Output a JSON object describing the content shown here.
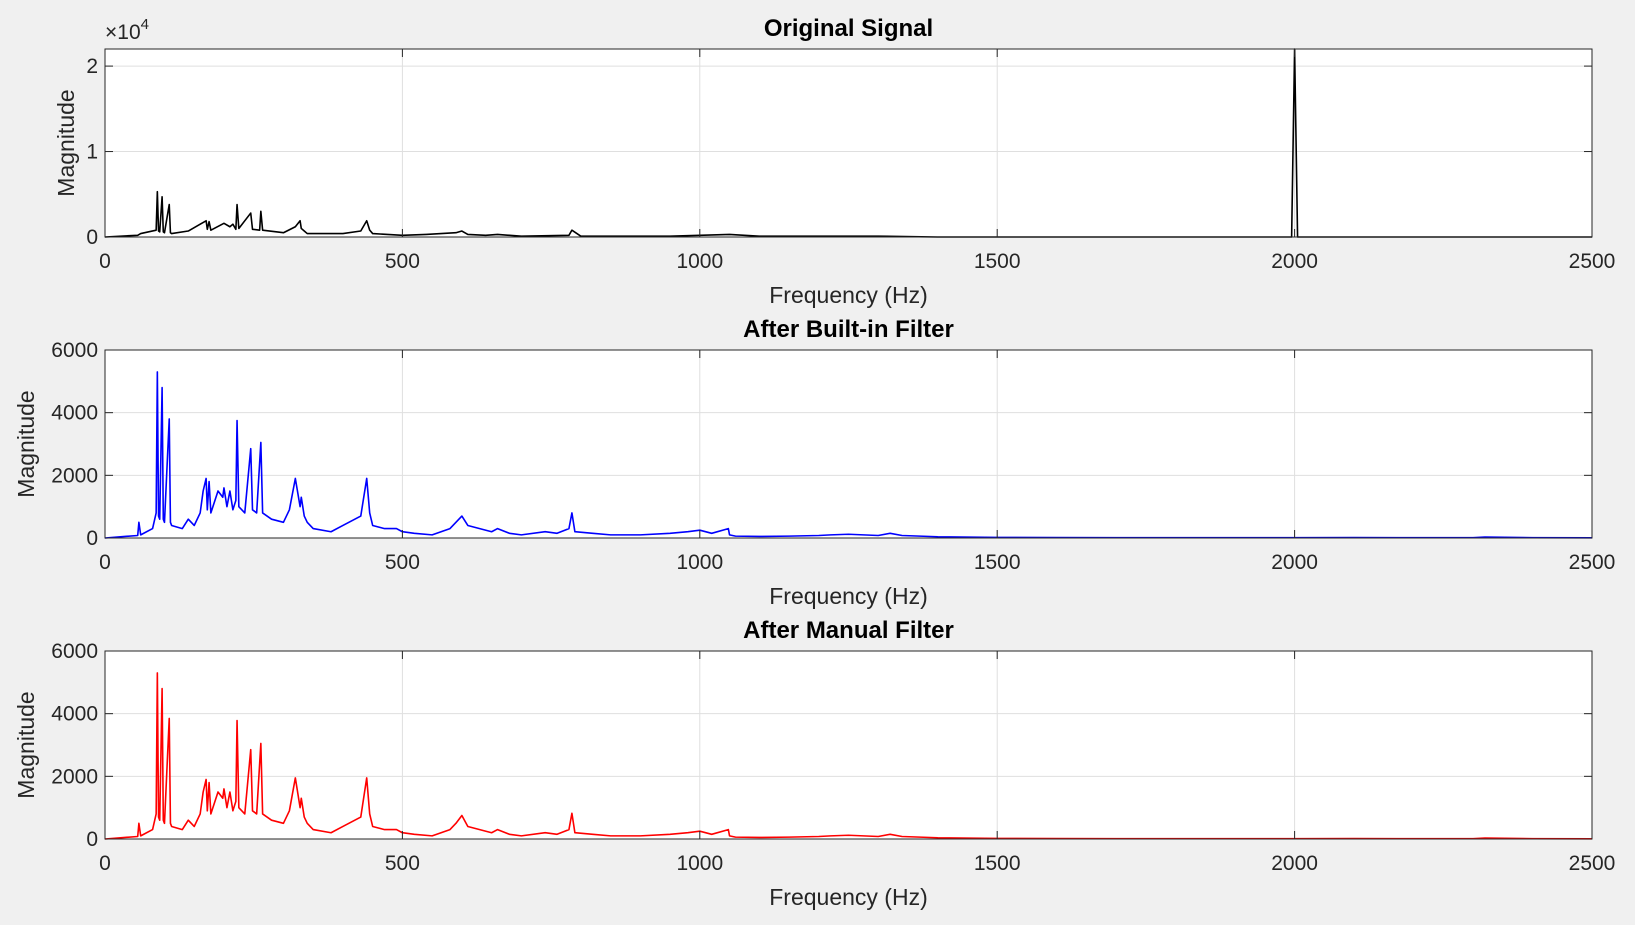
{
  "figure": {
    "background": "#f0f0f0"
  },
  "chart_data": [
    {
      "type": "line",
      "title": "Original Signal",
      "xlabel": "Frequency (Hz)",
      "ylabel": "Magnitude",
      "xlim": [
        0,
        2500
      ],
      "ylim": [
        0,
        2.2
      ],
      "y_multiplier": "×10",
      "y_exponent": "4",
      "xticks": [
        0,
        500,
        1000,
        1500,
        2000,
        2500
      ],
      "yticks": [
        0,
        1,
        2
      ],
      "grid": true,
      "color": "#000000",
      "series": [
        {
          "x": [
            0,
            55,
            60,
            86,
            88,
            90,
            92,
            96,
            98,
            100,
            108,
            110,
            112,
            140,
            160,
            170,
            172,
            175,
            178,
            200,
            210,
            215,
            220,
            222,
            225,
            245,
            248,
            260,
            262,
            265,
            300,
            320,
            328,
            330,
            335,
            340,
            400,
            430,
            440,
            445,
            450,
            500,
            540,
            590,
            600,
            610,
            640,
            660,
            700,
            780,
            785,
            800,
            900,
            950,
            1000,
            1050,
            1100,
            1200,
            1300,
            1400,
            1500,
            1600,
            1700,
            1800,
            1900,
            1995,
            2000,
            2005,
            2100,
            2200,
            2300,
            2400,
            2500
          ],
          "y": [
            0.0,
            0.02,
            0.04,
            0.08,
            0.53,
            0.07,
            0.06,
            0.47,
            0.06,
            0.05,
            0.38,
            0.05,
            0.04,
            0.07,
            0.15,
            0.19,
            0.09,
            0.18,
            0.08,
            0.16,
            0.12,
            0.15,
            0.09,
            0.38,
            0.1,
            0.28,
            0.09,
            0.08,
            0.3,
            0.08,
            0.05,
            0.12,
            0.19,
            0.1,
            0.07,
            0.04,
            0.04,
            0.07,
            0.19,
            0.08,
            0.04,
            0.02,
            0.03,
            0.05,
            0.07,
            0.03,
            0.02,
            0.03,
            0.01,
            0.02,
            0.08,
            0.01,
            0.01,
            0.01,
            0.02,
            0.03,
            0.01,
            0.01,
            0.01,
            0.0,
            0.0,
            0.0,
            0.0,
            0.0,
            0.0,
            0.0,
            2.2,
            0.0,
            0.0,
            0.0,
            0.0,
            0.0,
            0.0
          ]
        }
      ]
    },
    {
      "type": "line",
      "title": "After Built-in Filter",
      "xlabel": "Frequency (Hz)",
      "ylabel": "Magnitude",
      "xlim": [
        0,
        2500
      ],
      "ylim": [
        0,
        6000
      ],
      "xticks": [
        0,
        500,
        1000,
        1500,
        2000,
        2500
      ],
      "yticks": [
        0,
        2000,
        4000,
        6000
      ],
      "grid": true,
      "color": "#0000ff",
      "series": [
        {
          "x": [
            0,
            55,
            57,
            60,
            80,
            86,
            88,
            90,
            92,
            96,
            98,
            100,
            108,
            110,
            112,
            130,
            140,
            150,
            160,
            165,
            170,
            172,
            175,
            178,
            190,
            198,
            200,
            205,
            210,
            215,
            220,
            222,
            225,
            235,
            245,
            248,
            255,
            262,
            265,
            280,
            300,
            310,
            320,
            328,
            330,
            335,
            340,
            350,
            380,
            400,
            410,
            430,
            440,
            445,
            450,
            470,
            490,
            500,
            520,
            550,
            580,
            590,
            600,
            610,
            630,
            650,
            660,
            680,
            700,
            740,
            760,
            780,
            785,
            790,
            820,
            850,
            900,
            950,
            980,
            1000,
            1020,
            1048,
            1050,
            1060,
            1100,
            1150,
            1200,
            1220,
            1250,
            1300,
            1320,
            1340,
            1400,
            1500,
            1600,
            1700,
            1800,
            1900,
            2000,
            2100,
            2200,
            2300,
            2320,
            2400,
            2500
          ],
          "y": [
            0,
            80,
            500,
            100,
            300,
            800,
            5300,
            700,
            600,
            4800,
            600,
            500,
            3800,
            500,
            400,
            300,
            600,
            400,
            800,
            1500,
            1900,
            900,
            1800,
            800,
            1500,
            1300,
            1600,
            1000,
            1500,
            900,
            1200,
            3750,
            1000,
            800,
            2850,
            900,
            800,
            3050,
            800,
            600,
            500,
            900,
            1900,
            1000,
            1300,
            700,
            500,
            300,
            200,
            400,
            500,
            700,
            1900,
            800,
            400,
            300,
            300,
            200,
            150,
            100,
            300,
            500,
            700,
            400,
            300,
            200,
            300,
            150,
            100,
            200,
            150,
            300,
            800,
            200,
            150,
            100,
            100,
            150,
            200,
            250,
            150,
            300,
            100,
            60,
            50,
            60,
            80,
            100,
            120,
            80,
            150,
            80,
            40,
            20,
            15,
            10,
            10,
            10,
            10,
            15,
            10,
            10,
            30,
            10,
            5
          ]
        }
      ]
    },
    {
      "type": "line",
      "title": "After Manual Filter",
      "xlabel": "Frequency (Hz)",
      "ylabel": "Magnitude",
      "xlim": [
        0,
        2500
      ],
      "ylim": [
        0,
        6000
      ],
      "xticks": [
        0,
        500,
        1000,
        1500,
        2000,
        2500
      ],
      "yticks": [
        0,
        2000,
        4000,
        6000
      ],
      "grid": true,
      "color": "#ff0000",
      "series": [
        {
          "x": [
            0,
            55,
            57,
            60,
            80,
            86,
            88,
            90,
            92,
            96,
            98,
            100,
            108,
            110,
            112,
            130,
            140,
            150,
            160,
            165,
            170,
            172,
            175,
            178,
            190,
            198,
            200,
            205,
            210,
            215,
            220,
            222,
            225,
            235,
            245,
            248,
            255,
            262,
            265,
            280,
            300,
            310,
            320,
            328,
            330,
            335,
            340,
            350,
            380,
            400,
            410,
            430,
            440,
            445,
            450,
            470,
            490,
            500,
            520,
            550,
            580,
            590,
            600,
            610,
            630,
            650,
            660,
            680,
            700,
            740,
            760,
            780,
            785,
            790,
            820,
            850,
            900,
            950,
            980,
            1000,
            1020,
            1048,
            1050,
            1060,
            1100,
            1150,
            1200,
            1220,
            1250,
            1300,
            1320,
            1340,
            1400,
            1500,
            1600,
            1700,
            1800,
            1900,
            2000,
            2100,
            2200,
            2300,
            2320,
            2400,
            2500
          ],
          "y": [
            0,
            80,
            500,
            100,
            300,
            800,
            5300,
            700,
            600,
            4800,
            600,
            500,
            3850,
            500,
            400,
            300,
            600,
            400,
            800,
            1500,
            1900,
            900,
            1800,
            800,
            1500,
            1300,
            1600,
            1000,
            1500,
            900,
            1200,
            3780,
            1000,
            800,
            2850,
            900,
            800,
            3050,
            800,
            600,
            500,
            900,
            1950,
            1000,
            1300,
            700,
            500,
            300,
            200,
            400,
            500,
            700,
            1950,
            800,
            400,
            300,
            300,
            200,
            150,
            100,
            300,
            500,
            750,
            400,
            300,
            200,
            300,
            150,
            100,
            200,
            150,
            300,
            820,
            200,
            150,
            100,
            100,
            150,
            200,
            250,
            150,
            300,
            100,
            60,
            50,
            60,
            80,
            100,
            120,
            80,
            150,
            80,
            40,
            20,
            15,
            10,
            10,
            10,
            10,
            15,
            10,
            10,
            30,
            10,
            5
          ]
        }
      ]
    }
  ]
}
